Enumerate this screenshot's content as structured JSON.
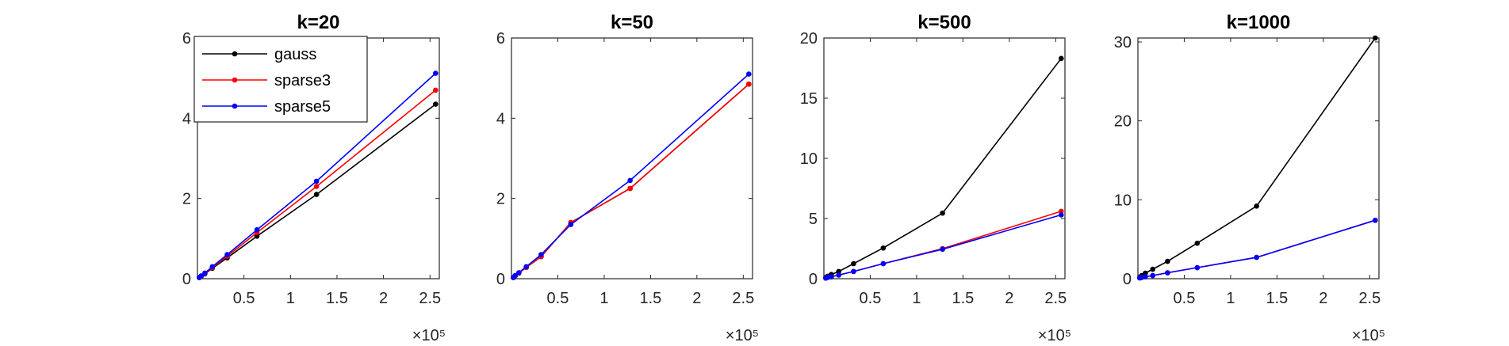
{
  "chart_data": [
    {
      "type": "line",
      "title": "k=20",
      "x_exponent_label": "×10⁵",
      "xlim": [
        0,
        2.6
      ],
      "ylim": [
        0,
        6
      ],
      "xticks": [
        0.5,
        1,
        1.5,
        2,
        2.5
      ],
      "yticks": [
        0,
        2,
        4,
        6
      ],
      "legend": {
        "position": "top-left",
        "entries": [
          "gauss",
          "sparse3",
          "sparse5"
        ]
      },
      "series": [
        {
          "name": "gauss",
          "color": "#000000",
          "x": [
            0.02,
            0.04,
            0.08,
            0.16,
            0.32,
            0.64,
            1.28,
            2.56
          ],
          "y": [
            0.03,
            0.06,
            0.12,
            0.26,
            0.52,
            1.06,
            2.1,
            4.35
          ]
        },
        {
          "name": "sparse3",
          "color": "#ff0000",
          "x": [
            0.02,
            0.04,
            0.08,
            0.16,
            0.32,
            0.64,
            1.28,
            2.56
          ],
          "y": [
            0.03,
            0.06,
            0.13,
            0.28,
            0.56,
            1.15,
            2.3,
            4.7
          ]
        },
        {
          "name": "sparse5",
          "color": "#0000ff",
          "x": [
            0.02,
            0.04,
            0.08,
            0.16,
            0.32,
            0.64,
            1.28,
            2.56
          ],
          "y": [
            0.03,
            0.07,
            0.14,
            0.3,
            0.6,
            1.22,
            2.43,
            5.12
          ]
        }
      ]
    },
    {
      "type": "line",
      "title": "k=50",
      "x_exponent_label": "×10⁵",
      "xlim": [
        0,
        2.6
      ],
      "ylim": [
        0,
        6
      ],
      "xticks": [
        0.5,
        1,
        1.5,
        2,
        2.5
      ],
      "yticks": [
        0,
        2,
        4,
        6
      ],
      "series": [
        {
          "name": "gauss",
          "color": "#000000",
          "x": [
            0.02,
            0.04,
            0.08,
            0.16,
            0.32,
            0.64,
            1.28,
            2.56
          ],
          "y": [
            0.03,
            0.07,
            0.14,
            0.28,
            0.55,
            1.4,
            2.25,
            4.85
          ]
        },
        {
          "name": "sparse3",
          "color": "#ff0000",
          "x": [
            0.02,
            0.04,
            0.08,
            0.16,
            0.32,
            0.64,
            1.28,
            2.56
          ],
          "y": [
            0.03,
            0.07,
            0.14,
            0.28,
            0.55,
            1.4,
            2.25,
            4.85
          ]
        },
        {
          "name": "sparse5",
          "color": "#0000ff",
          "x": [
            0.02,
            0.04,
            0.08,
            0.16,
            0.32,
            0.64,
            1.28,
            2.56
          ],
          "y": [
            0.03,
            0.08,
            0.15,
            0.3,
            0.6,
            1.35,
            2.45,
            5.1
          ]
        }
      ]
    },
    {
      "type": "line",
      "title": "k=500",
      "x_exponent_label": "×10⁵",
      "xlim": [
        0,
        2.6
      ],
      "ylim": [
        0,
        20
      ],
      "xticks": [
        0.5,
        1,
        1.5,
        2,
        2.5
      ],
      "yticks": [
        0,
        5,
        10,
        15,
        20
      ],
      "series": [
        {
          "name": "gauss",
          "color": "#000000",
          "x": [
            0.02,
            0.04,
            0.08,
            0.16,
            0.32,
            0.64,
            1.28,
            2.56
          ],
          "y": [
            0.1,
            0.2,
            0.35,
            0.6,
            1.25,
            2.55,
            5.45,
            18.3
          ]
        },
        {
          "name": "sparse3",
          "color": "#ff0000",
          "x": [
            0.02,
            0.04,
            0.08,
            0.16,
            0.32,
            0.64,
            1.28,
            2.56
          ],
          "y": [
            0.05,
            0.1,
            0.16,
            0.3,
            0.6,
            1.25,
            2.5,
            5.6
          ]
        },
        {
          "name": "sparse5",
          "color": "#0000ff",
          "x": [
            0.02,
            0.04,
            0.08,
            0.16,
            0.32,
            0.64,
            1.28,
            2.56
          ],
          "y": [
            0.05,
            0.1,
            0.16,
            0.3,
            0.6,
            1.25,
            2.45,
            5.3
          ]
        }
      ]
    },
    {
      "type": "line",
      "title": "k=1000",
      "x_exponent_label": "×10⁵",
      "xlim": [
        0,
        2.6
      ],
      "ylim": [
        0,
        30.5
      ],
      "xticks": [
        0.5,
        1,
        1.5,
        2,
        2.5
      ],
      "yticks": [
        0,
        10,
        20,
        30
      ],
      "series": [
        {
          "name": "gauss",
          "color": "#000000",
          "x": [
            0.02,
            0.04,
            0.08,
            0.16,
            0.32,
            0.64,
            1.28,
            2.56
          ],
          "y": [
            0.2,
            0.4,
            0.7,
            1.2,
            2.2,
            4.5,
            9.2,
            30.5
          ]
        },
        {
          "name": "sparse3",
          "color": "#ff0000",
          "x": [
            0.02,
            0.04,
            0.08,
            0.16,
            0.32,
            0.64,
            1.28,
            2.56
          ],
          "y": [
            0.1,
            0.15,
            0.25,
            0.4,
            0.75,
            1.4,
            2.7,
            7.4
          ]
        },
        {
          "name": "sparse5",
          "color": "#0000ff",
          "x": [
            0.02,
            0.04,
            0.08,
            0.16,
            0.32,
            0.64,
            1.28,
            2.56
          ],
          "y": [
            0.1,
            0.15,
            0.25,
            0.4,
            0.75,
            1.4,
            2.7,
            7.4
          ]
        }
      ]
    }
  ]
}
